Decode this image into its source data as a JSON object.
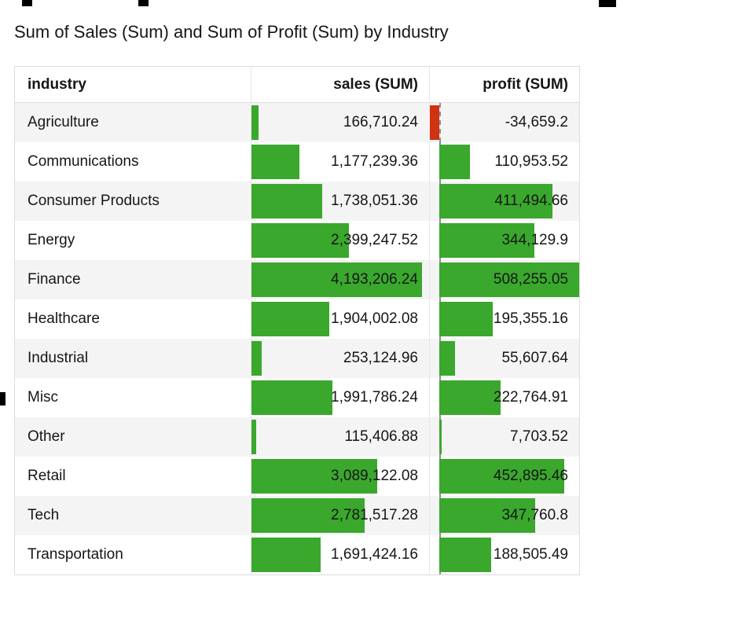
{
  "title": "Sum of Sales (Sum) and Sum of Profit (Sum) by Industry",
  "table": {
    "columns": [
      "industry",
      "sales (SUM)",
      "profit (SUM)"
    ],
    "rows": [
      {
        "industry": "Agriculture",
        "sales": "166,710.24",
        "profit": "-34,659.2"
      },
      {
        "industry": "Communications",
        "sales": "1,177,239.36",
        "profit": "110,953.52"
      },
      {
        "industry": "Consumer Products",
        "sales": "1,738,051.36",
        "profit": "411,494.66"
      },
      {
        "industry": "Energy",
        "sales": "2,399,247.52",
        "profit": "344,129.9"
      },
      {
        "industry": "Finance",
        "sales": "4,193,206.24",
        "profit": "508,255.05"
      },
      {
        "industry": "Healthcare",
        "sales": "1,904,002.08",
        "profit": "195,355.16"
      },
      {
        "industry": "Industrial",
        "sales": "253,124.96",
        "profit": "55,607.64"
      },
      {
        "industry": "Misc",
        "sales": "1,991,786.24",
        "profit": "222,764.91"
      },
      {
        "industry": "Other",
        "sales": "115,406.88",
        "profit": "7,703.52"
      },
      {
        "industry": "Retail",
        "sales": "3,089,122.08",
        "profit": "452,895.46"
      },
      {
        "industry": "Tech",
        "sales": "2,781,517.28",
        "profit": "347,760.8"
      },
      {
        "industry": "Transportation",
        "sales": "1,691,424.16",
        "profit": "188,505.49"
      }
    ]
  },
  "chart_data": {
    "type": "table",
    "title": "Sum of Sales (Sum) and Sum of Profit (Sum) by Industry",
    "columns": [
      "industry",
      "sales (SUM)",
      "profit (SUM)"
    ],
    "categories": [
      "Agriculture",
      "Communications",
      "Consumer Products",
      "Energy",
      "Finance",
      "Healthcare",
      "Industrial",
      "Misc",
      "Other",
      "Retail",
      "Tech",
      "Transportation"
    ],
    "series": [
      {
        "name": "sales (SUM)",
        "values": [
          166710.24,
          1177239.36,
          1738051.36,
          2399247.52,
          4193206.24,
          1904002.08,
          253124.96,
          1991786.24,
          115406.88,
          3089122.08,
          2781517.28,
          1691424.16
        ]
      },
      {
        "name": "profit (SUM)",
        "values": [
          -34659.2,
          110953.52,
          411494.66,
          344129.9,
          508255.05,
          195355.16,
          55607.64,
          222764.91,
          7703.52,
          452895.46,
          347760.8,
          188505.49
        ]
      }
    ],
    "bar_style": "in-cell data bars; profit column has dashed zero baseline; negative values drawn red to the left of baseline",
    "legend": "none",
    "grid": "off"
  },
  "colors": {
    "bar_positive": "#3aa82d",
    "bar_negative": "#d13212",
    "row_alt": "#f4f4f4",
    "table_border": "#dcdcdc",
    "zero_line": "#8f8f8f",
    "text": "#161616"
  }
}
